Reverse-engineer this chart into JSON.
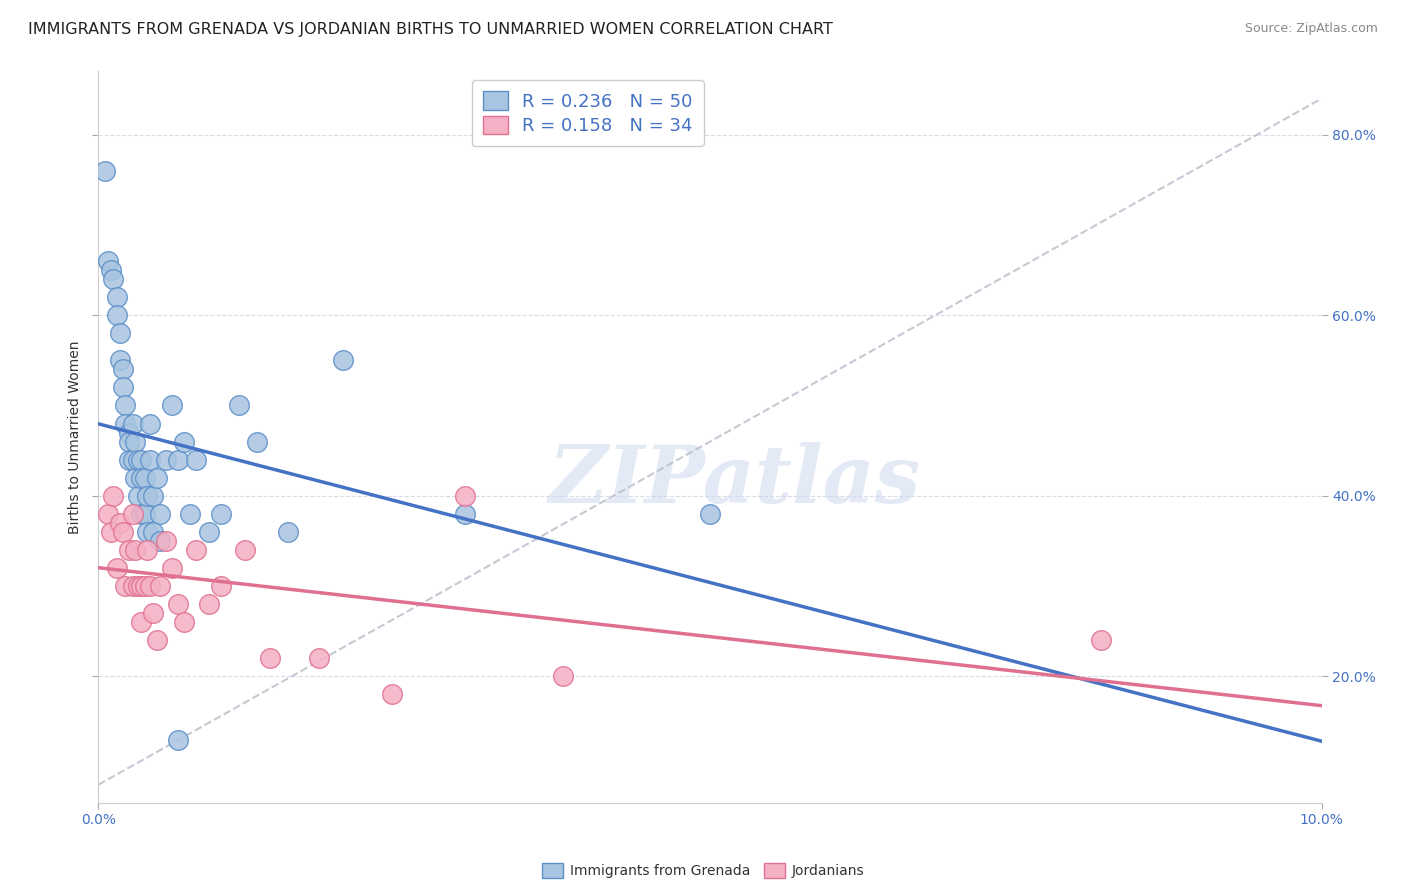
{
  "title": "IMMIGRANTS FROM GRENADA VS JORDANIAN BIRTHS TO UNMARRIED WOMEN CORRELATION CHART",
  "source_text": "Source: ZipAtlas.com",
  "ylabel": "Births to Unmarried Women",
  "legend_label1": "Immigrants from Grenada",
  "legend_label2": "Jordanians",
  "r1": 0.236,
  "n1": 50,
  "r2": 0.158,
  "n2": 34,
  "blue_scatter_color": "#a8c4e0",
  "blue_edge_color": "#5b8fc9",
  "pink_scatter_color": "#f4b0c4",
  "pink_edge_color": "#e07090",
  "blue_line_color": "#4472c4",
  "pink_line_color": "#e07090",
  "dashed_line_color": "#b8bcc8",
  "right_tick_color": "#4472c4",
  "x_min": 0.0,
  "x_max": 0.1,
  "y_min": 0.06,
  "y_max": 0.87,
  "yticks": [
    0.2,
    0.4,
    0.6,
    0.8
  ],
  "blue_scatter_x": [
    0.0005,
    0.0008,
    0.001,
    0.0012,
    0.0015,
    0.0015,
    0.0018,
    0.0018,
    0.002,
    0.002,
    0.0022,
    0.0022,
    0.0025,
    0.0025,
    0.0025,
    0.0028,
    0.0028,
    0.003,
    0.003,
    0.0032,
    0.0032,
    0.0035,
    0.0035,
    0.0035,
    0.0038,
    0.0038,
    0.004,
    0.004,
    0.0042,
    0.0042,
    0.0045,
    0.0045,
    0.0048,
    0.005,
    0.005,
    0.0055,
    0.006,
    0.0065,
    0.007,
    0.0075,
    0.008,
    0.009,
    0.01,
    0.0115,
    0.013,
    0.0155,
    0.02,
    0.03,
    0.05,
    0.0065
  ],
  "blue_scatter_y": [
    0.76,
    0.66,
    0.65,
    0.64,
    0.62,
    0.6,
    0.58,
    0.55,
    0.54,
    0.52,
    0.5,
    0.48,
    0.47,
    0.46,
    0.44,
    0.48,
    0.44,
    0.46,
    0.42,
    0.44,
    0.4,
    0.44,
    0.42,
    0.38,
    0.42,
    0.38,
    0.4,
    0.36,
    0.48,
    0.44,
    0.4,
    0.36,
    0.42,
    0.38,
    0.35,
    0.44,
    0.5,
    0.44,
    0.46,
    0.38,
    0.44,
    0.36,
    0.38,
    0.5,
    0.46,
    0.36,
    0.55,
    0.38,
    0.38,
    0.13
  ],
  "pink_scatter_x": [
    0.0008,
    0.001,
    0.0012,
    0.0015,
    0.0018,
    0.002,
    0.0022,
    0.0025,
    0.0028,
    0.0028,
    0.003,
    0.0032,
    0.0035,
    0.0035,
    0.0038,
    0.004,
    0.0042,
    0.0045,
    0.0048,
    0.005,
    0.0055,
    0.006,
    0.0065,
    0.007,
    0.008,
    0.009,
    0.01,
    0.012,
    0.014,
    0.018,
    0.024,
    0.03,
    0.038,
    0.082
  ],
  "pink_scatter_y": [
    0.38,
    0.36,
    0.4,
    0.32,
    0.37,
    0.36,
    0.3,
    0.34,
    0.38,
    0.3,
    0.34,
    0.3,
    0.3,
    0.26,
    0.3,
    0.34,
    0.3,
    0.27,
    0.24,
    0.3,
    0.35,
    0.32,
    0.28,
    0.26,
    0.34,
    0.28,
    0.3,
    0.34,
    0.22,
    0.22,
    0.18,
    0.4,
    0.2,
    0.24
  ],
  "watermark_text": "ZIPatlas",
  "title_fontsize": 11.5,
  "source_fontsize": 9,
  "tick_fontsize": 10,
  "ylabel_fontsize": 10,
  "legend_fontsize": 13
}
